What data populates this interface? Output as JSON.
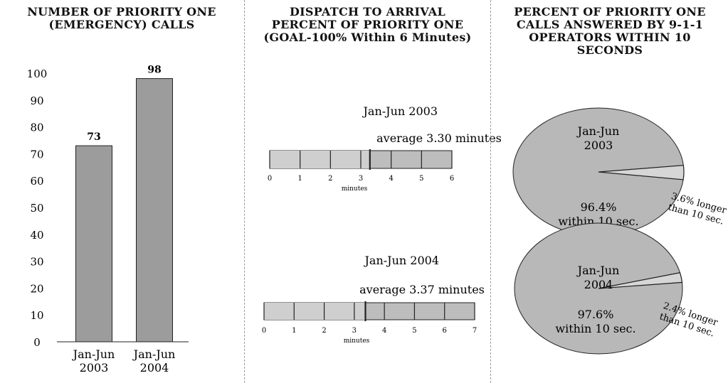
{
  "colors": {
    "bar": "#9c9c9c",
    "pie": "#b8b8b8",
    "slice": "#d6d6d6",
    "ink": "#222222"
  },
  "titles": {
    "p1": [
      "NUMBER OF PRIORITY ONE",
      "(EMERGENCY) CALLS"
    ],
    "p2": [
      "DISPATCH TO ARRIVAL",
      "PERCENT OF PRIORITY ONE",
      "(GOAL-100% Within 6 Minutes)"
    ],
    "p3": [
      "PERCENT OF PRIORITY ONE",
      "CALLS ANSWERED BY 9-1-1",
      "OPERATORS WITHIN 10",
      "SECONDS"
    ]
  },
  "chart_data": [
    {
      "type": "bar",
      "title": "NUMBER OF PRIORITY ONE (EMERGENCY) CALLS",
      "categories": [
        [
          "Jan-Jun",
          "2003"
        ],
        [
          "Jan-Jun",
          "2004"
        ]
      ],
      "values": [
        73,
        98
      ],
      "data_labels": [
        "73",
        "98"
      ],
      "ylim": [
        0,
        100
      ],
      "yticks": [
        "0",
        "10",
        "20",
        "30",
        "40",
        "50",
        "60",
        "70",
        "80",
        "90",
        "100"
      ]
    },
    {
      "type": "bar",
      "title": "DISPATCH TO ARRIVAL PERCENT OF PRIORITY ONE (GOAL-100% Within 6 Minutes)",
      "scales": [
        {
          "period": "Jan-Jun 2003",
          "average_label": "average 3.30 minutes",
          "value": 3.3,
          "max": 6,
          "ticks": [
            "0",
            "1",
            "2",
            "3",
            "4",
            "5",
            "6"
          ],
          "unit": "minutes"
        },
        {
          "period": "Jan-Jun 2004",
          "average_label": "average 3.37 minutes",
          "value": 3.37,
          "max": 7,
          "ticks": [
            "0",
            "1",
            "2",
            "3",
            "4",
            "5",
            "6",
            "7"
          ],
          "unit": "minutes"
        }
      ]
    },
    {
      "type": "pie",
      "title": "PERCENT OF PRIORITY ONE CALLS ANSWERED BY 9-1-1 OPERATORS WITHIN 10 SECONDS",
      "pies": [
        {
          "period": [
            "Jan-Jun",
            "2003"
          ],
          "main": {
            "value": 96.4,
            "label": [
              "96.4%",
              "within 10 sec."
            ]
          },
          "slice": {
            "value": 3.6,
            "label": [
              "3.6% longer",
              "than 10 sec."
            ]
          }
        },
        {
          "period": [
            "Jan-Jun",
            "2004"
          ],
          "main": {
            "value": 97.6,
            "label": [
              "97.6%",
              "within 10 sec."
            ]
          },
          "slice": {
            "value": 2.4,
            "label": [
              "2.4% longer",
              "than 10 sec."
            ]
          }
        }
      ]
    }
  ]
}
